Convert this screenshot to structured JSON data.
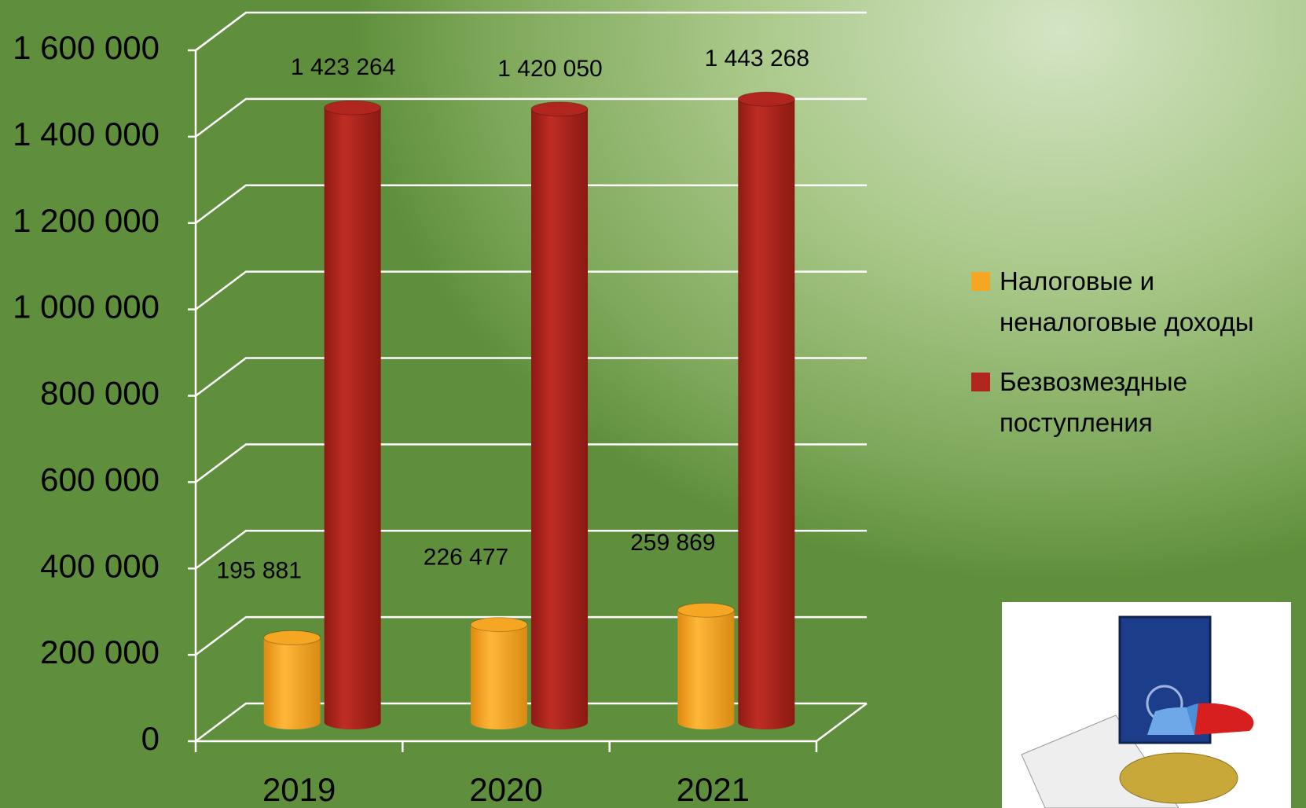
{
  "chart_data": {
    "type": "bar3d",
    "categories": [
      "2019",
      "2020",
      "2021"
    ],
    "series": [
      {
        "name": "Налоговые и неналоговые доходы",
        "color": "#f5a623",
        "values": [
          195881,
          226477,
          259869
        ],
        "value_labels": [
          "195 881",
          "226 477",
          "259 869"
        ]
      },
      {
        "name": "Безвозмездные поступления",
        "color": "#b0261f",
        "values": [
          1423264,
          1420050,
          1443268
        ],
        "value_labels": [
          "1 423 264",
          "1 420 050",
          "1 443 268"
        ]
      }
    ],
    "ylim": [
      0,
      1600000
    ],
    "yticks": [
      0,
      {
        "value": 200000,
        "label": "200 000"
      },
      {
        "value": 400000,
        "label": "400 000"
      },
      {
        "value": 600000,
        "label": "600 000"
      },
      {
        "value": 800000,
        "label": "800 000"
      },
      {
        "value": 1000000,
        "label": "1 000 000"
      },
      {
        "value": 1200000,
        "label": "1 200 000"
      },
      {
        "value": 1400000,
        "label": "1 400 000"
      },
      {
        "value": 1600000,
        "label": "1 600 000"
      }
    ],
    "grid": true,
    "legend": "right"
  }
}
